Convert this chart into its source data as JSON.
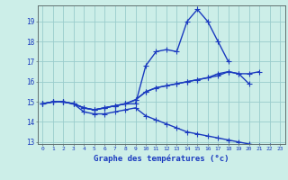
{
  "xlabel": "Graphe des températures (°c)",
  "hours": [
    0,
    1,
    2,
    3,
    4,
    5,
    6,
    7,
    8,
    9,
    10,
    11,
    12,
    13,
    14,
    15,
    16,
    17,
    18,
    19,
    20,
    21,
    22,
    23
  ],
  "line1": [
    14.9,
    15.0,
    15.0,
    14.9,
    14.7,
    14.6,
    14.7,
    14.8,
    14.9,
    14.9,
    16.8,
    17.5,
    17.6,
    17.5,
    19.0,
    19.6,
    19.0,
    18.0,
    17.0,
    null,
    null,
    null,
    null,
    null
  ],
  "line2": [
    14.9,
    15.0,
    15.0,
    14.9,
    14.7,
    14.6,
    14.7,
    14.8,
    14.9,
    15.1,
    15.5,
    15.7,
    15.8,
    15.9,
    16.0,
    16.1,
    16.2,
    16.4,
    16.5,
    16.4,
    16.4,
    16.5,
    null,
    null
  ],
  "line3": [
    14.9,
    15.0,
    15.0,
    14.9,
    14.7,
    14.6,
    14.7,
    14.8,
    14.9,
    15.1,
    15.5,
    15.7,
    15.8,
    15.9,
    16.0,
    16.1,
    16.2,
    16.3,
    16.5,
    16.4,
    15.9,
    null,
    null,
    null
  ],
  "line4": [
    14.9,
    15.0,
    15.0,
    14.9,
    14.5,
    14.4,
    14.4,
    14.5,
    14.6,
    14.7,
    14.3,
    14.1,
    13.9,
    13.7,
    13.5,
    13.4,
    13.3,
    13.2,
    13.1,
    13.0,
    12.9,
    12.8,
    12.8,
    null
  ],
  "ylim": [
    12.9,
    19.8
  ],
  "xlim": [
    -0.5,
    23.5
  ],
  "yticks": [
    13,
    14,
    15,
    16,
    17,
    18,
    19
  ],
  "xticks": [
    0,
    1,
    2,
    3,
    4,
    5,
    6,
    7,
    8,
    9,
    10,
    11,
    12,
    13,
    14,
    15,
    16,
    17,
    18,
    19,
    20,
    21,
    22,
    23
  ],
  "line_color": "#1a3abf",
  "bg_color": "#cceee8",
  "grid_color": "#99cccc",
  "tick_color": "#1a3abf",
  "label_color": "#1a3abf",
  "markersize": 2.5,
  "linewidth": 1.0
}
